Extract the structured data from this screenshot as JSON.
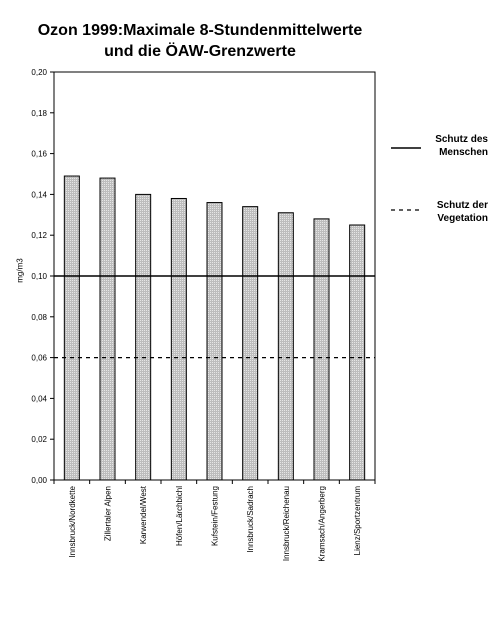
{
  "chart_data": {
    "type": "bar",
    "title_line1": "Ozon 1999:Maximale 8-Stundenmittelwerte",
    "title_line2": "und die ÖAW-Grenzwerte",
    "xlabel": "",
    "ylabel": "mg/m3",
    "ylim": [
      0,
      0.2
    ],
    "yticks": [
      "0,00",
      "0,02",
      "0,04",
      "0,06",
      "0,08",
      "0,10",
      "0,12",
      "0,14",
      "0,16",
      "0,18",
      "0,20"
    ],
    "categories": [
      "Innsbruck/Nordkette",
      "Zillertaler Alpen",
      "Karwendel/West",
      "Höfen/Lärchbichl",
      "Kufstein/Festung",
      "Innsbruck/Sadrach",
      "Innsbruck/Reichenau",
      "Kramsach/Angerberg",
      "Lienz/Sportzentrum"
    ],
    "values": [
      0.149,
      0.148,
      0.14,
      0.138,
      0.136,
      0.134,
      0.131,
      0.128,
      0.125
    ],
    "reference_lines": [
      {
        "name_line1": "Schutz des",
        "name_line2": "Menschen",
        "value": 0.1,
        "style": "solid"
      },
      {
        "name_line1": "Schutz der",
        "name_line2": "Vegetation",
        "value": 0.06,
        "style": "dashed"
      }
    ],
    "grid": false,
    "legend_position": "right",
    "colors": {
      "bar_fill": "#c8c8c8",
      "bar_stroke": "#000000",
      "line": "#000000"
    }
  }
}
